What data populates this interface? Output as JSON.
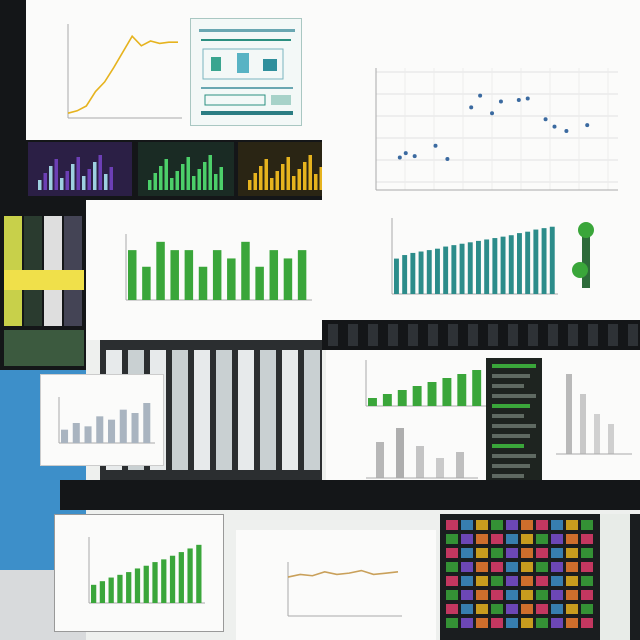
{
  "collage": {
    "panels": [
      {
        "id": "line-chart-top-left",
        "kind": "line-chart",
        "title": "",
        "x": [
          0,
          1,
          2,
          3,
          4,
          5,
          6,
          7,
          8,
          9,
          10,
          11,
          12
        ],
        "y": [
          4,
          6,
          10,
          22,
          30,
          42,
          55,
          68,
          60,
          64,
          62,
          63,
          63
        ]
      },
      {
        "id": "diagram-top-center",
        "kind": "diagram",
        "title": ""
      },
      {
        "id": "scatter-top-right",
        "kind": "scatter",
        "title": "",
        "points": [
          [
            0.8,
            2.2
          ],
          [
            1.0,
            2.5
          ],
          [
            1.3,
            2.3
          ],
          [
            2.0,
            3.0
          ],
          [
            2.4,
            2.1
          ],
          [
            3.2,
            5.6
          ],
          [
            3.5,
            6.4
          ],
          [
            3.9,
            5.2
          ],
          [
            4.2,
            6.0
          ],
          [
            4.8,
            6.1
          ],
          [
            5.1,
            6.2
          ],
          [
            5.7,
            4.8
          ],
          [
            6.0,
            4.3
          ],
          [
            6.4,
            4.0
          ],
          [
            7.1,
            4.4
          ]
        ]
      },
      {
        "id": "bar-chart-middle",
        "kind": "bar-chart",
        "title": "",
        "values": [
          6,
          4,
          7,
          6,
          6,
          4,
          6,
          5,
          7,
          4,
          6,
          5,
          6
        ]
      },
      {
        "id": "bar-chart-right",
        "kind": "bar-chart",
        "title": "",
        "values": [
          5,
          5.5,
          5.8,
          6,
          6.2,
          6.4,
          6.7,
          6.9,
          7.1,
          7.3,
          7.5,
          7.7,
          7.9,
          8.1,
          8.3,
          8.6,
          8.8,
          9.1,
          9.3,
          9.5
        ]
      },
      {
        "id": "bar-chart-bottom-left",
        "kind": "bar-chart",
        "title": "",
        "values": [
          2,
          2.4,
          2.8,
          3.1,
          3.4,
          3.8,
          4.1,
          4.5,
          4.8,
          5.2,
          5.6,
          6.0,
          6.4
        ]
      },
      {
        "id": "line-chart-bottom-center",
        "kind": "line-chart",
        "title": "",
        "x": [
          0,
          1,
          2,
          3,
          4,
          5,
          6,
          7,
          8,
          9
        ],
        "y": [
          3,
          3.2,
          3.1,
          3.4,
          3.2,
          3.3,
          3.5,
          3.2,
          3.3,
          3.4
        ]
      },
      {
        "id": "bar-chart-center-right",
        "kind": "bar-chart",
        "title": "",
        "values": [
          2,
          3,
          4,
          5,
          6,
          7,
          8,
          9,
          10
        ]
      }
    ],
    "colors": {
      "green": "#3aa63a",
      "teal": "#2c8c8a",
      "gold": "#e6b31e",
      "purple": "#6c3fb5",
      "blue": "#3d8fc9",
      "dark": "#141618"
    }
  }
}
